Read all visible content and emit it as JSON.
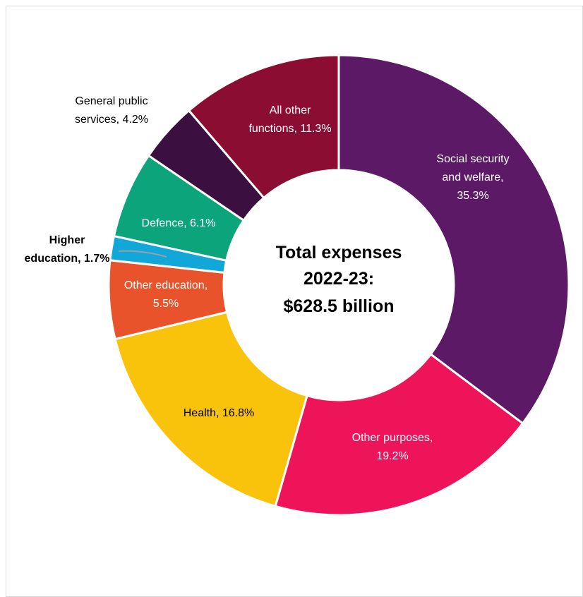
{
  "chart_data": {
    "type": "pie",
    "variant": "donut",
    "center_text": [
      "Total expenses",
      "2022-23:",
      "$628.5 billion"
    ],
    "slices": [
      {
        "name": "Social security and welfare",
        "value": 35.3,
        "label_lines": [
          "Social security",
          "and welfare,",
          "35.3%"
        ],
        "color": "#5c1a66",
        "label_color": "#ffffff",
        "label_inside": true,
        "bold": false
      },
      {
        "name": "Other purposes",
        "value": 19.2,
        "label_lines": [
          "Other purposes,",
          "19.2%"
        ],
        "color": "#ee1459",
        "label_color": "#ffffff",
        "label_inside": true,
        "bold": false
      },
      {
        "name": "Health",
        "value": 16.8,
        "label_lines": [
          "Health, 16.8%"
        ],
        "color": "#f9c30c",
        "label_color": "#000000",
        "label_inside": true,
        "bold": false
      },
      {
        "name": "Other education",
        "value": 5.5,
        "label_lines": [
          "Other education,",
          "5.5%"
        ],
        "color": "#e8532b",
        "label_color": "#ffffff",
        "label_inside": true,
        "bold": false
      },
      {
        "name": "Higher education",
        "value": 1.7,
        "label_lines": [
          "Higher",
          "education, 1.7%"
        ],
        "color": "#12a7d9",
        "label_color": "#000000",
        "label_inside": false,
        "bold": true
      },
      {
        "name": "Defence",
        "value": 6.1,
        "label_lines": [
          "Defence, 6.1%"
        ],
        "color": "#0ca47b",
        "label_color": "#ffffff",
        "label_inside": true,
        "bold": false
      },
      {
        "name": "General public services",
        "value": 4.2,
        "label_lines": [
          "General public",
          "services, 4.2%"
        ],
        "color": "#3b1040",
        "label_color": "#000000",
        "label_inside": false,
        "bold": false
      },
      {
        "name": "All other functions",
        "value": 11.3,
        "label_lines": [
          "All other",
          "functions, 11.3%"
        ],
        "color": "#8b0d32",
        "label_color": "#ffffff",
        "label_inside": true,
        "bold": false
      }
    ],
    "start_angle_deg": 0,
    "direction": "clockwise",
    "legend": "none"
  }
}
